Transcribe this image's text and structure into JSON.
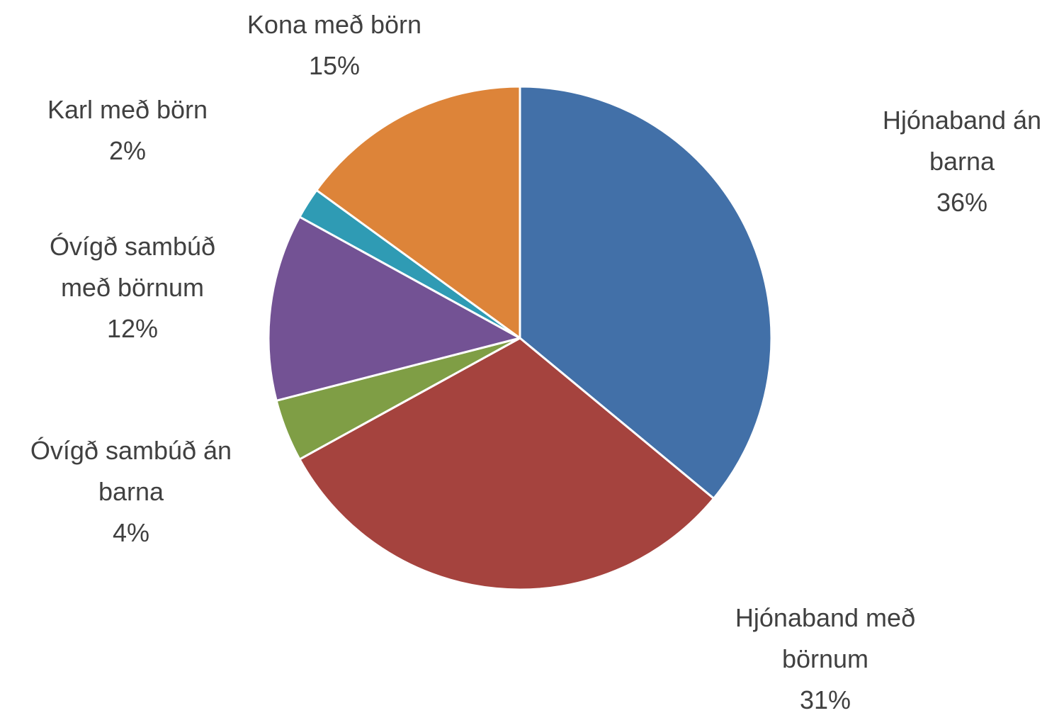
{
  "chart_data": {
    "type": "pie",
    "categories": [
      "Hjónaband án barna",
      "Hjónaband með börnum",
      "Óvígð sambúð án barna",
      "Óvígð sambúð með börnum",
      "Karl með börn",
      "Kona með börn"
    ],
    "values": [
      36,
      31,
      4,
      12,
      2,
      15
    ],
    "value_labels": [
      "36%",
      "31%",
      "4%",
      "12%",
      "2%",
      "15%"
    ],
    "colors": [
      "#4270a8",
      "#a5433e",
      "#7f9e45",
      "#735294",
      "#2f9bb4",
      "#dd8439"
    ]
  }
}
